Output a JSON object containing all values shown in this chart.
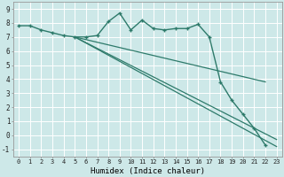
{
  "xlabel": "Humidex (Indice chaleur)",
  "background_color": "#cde8e8",
  "grid_color": "#ffffff",
  "line_color": "#2d7a6a",
  "xlim": [
    -0.5,
    23.5
  ],
  "ylim": [
    -1.5,
    9.5
  ],
  "xticks": [
    0,
    1,
    2,
    3,
    4,
    5,
    6,
    7,
    8,
    9,
    10,
    11,
    12,
    13,
    14,
    15,
    16,
    17,
    18,
    19,
    20,
    21,
    22,
    23
  ],
  "yticks": [
    -1,
    0,
    1,
    2,
    3,
    4,
    5,
    6,
    7,
    8,
    9
  ],
  "main_curve": {
    "x": [
      0,
      1,
      2,
      3,
      4,
      5,
      6,
      7,
      8,
      9,
      10,
      11,
      12,
      13,
      14,
      15,
      16,
      17,
      18,
      19,
      20,
      21,
      22
    ],
    "y": [
      7.8,
      7.8,
      7.5,
      7.3,
      7.1,
      7.0,
      7.0,
      7.1,
      8.1,
      8.7,
      7.5,
      8.2,
      7.6,
      7.5,
      7.6,
      7.6,
      7.9,
      7.0,
      3.8,
      2.5,
      1.5,
      0.5,
      -0.7
    ]
  },
  "fan_lines": [
    {
      "x": [
        5,
        23
      ],
      "y": [
        7.0,
        -0.8
      ]
    },
    {
      "x": [
        5,
        23
      ],
      "y": [
        7.0,
        -0.3
      ]
    },
    {
      "x": [
        5,
        22
      ],
      "y": [
        7.0,
        3.8
      ]
    }
  ]
}
